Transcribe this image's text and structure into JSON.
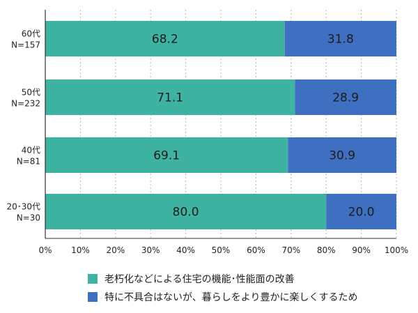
{
  "colors": {
    "series_1": "#3fb3a2",
    "series_2": "#3e6fc1",
    "grid": "#b4b4b4",
    "axis": "#333333",
    "label": "#222222"
  },
  "chart_data": {
    "type": "bar",
    "orientation": "horizontal",
    "stacked": true,
    "categories": [
      {
        "line1": "60代",
        "line2": "N=157"
      },
      {
        "line1": "50代",
        "line2": "N=232"
      },
      {
        "line1": "40代",
        "line2": "N=81"
      },
      {
        "line1": "20･30代",
        "line2": "N=30"
      }
    ],
    "series": [
      {
        "name": "老朽化などによる住宅の機能･性能面の改善",
        "values": [
          68.2,
          71.1,
          69.1,
          80.0
        ]
      },
      {
        "name": "特に不具合はないが、暮らしをより豊かに楽しくするため",
        "values": [
          31.8,
          28.9,
          30.9,
          20.0
        ]
      }
    ],
    "xlim": [
      0,
      100
    ],
    "xticks": [
      "0%",
      "10%",
      "20%",
      "30%",
      "40%",
      "50%",
      "60%",
      "70%",
      "80%",
      "90%",
      "100%"
    ],
    "grid": "vertical dashed",
    "legend_position": "bottom",
    "data_labels": true
  }
}
